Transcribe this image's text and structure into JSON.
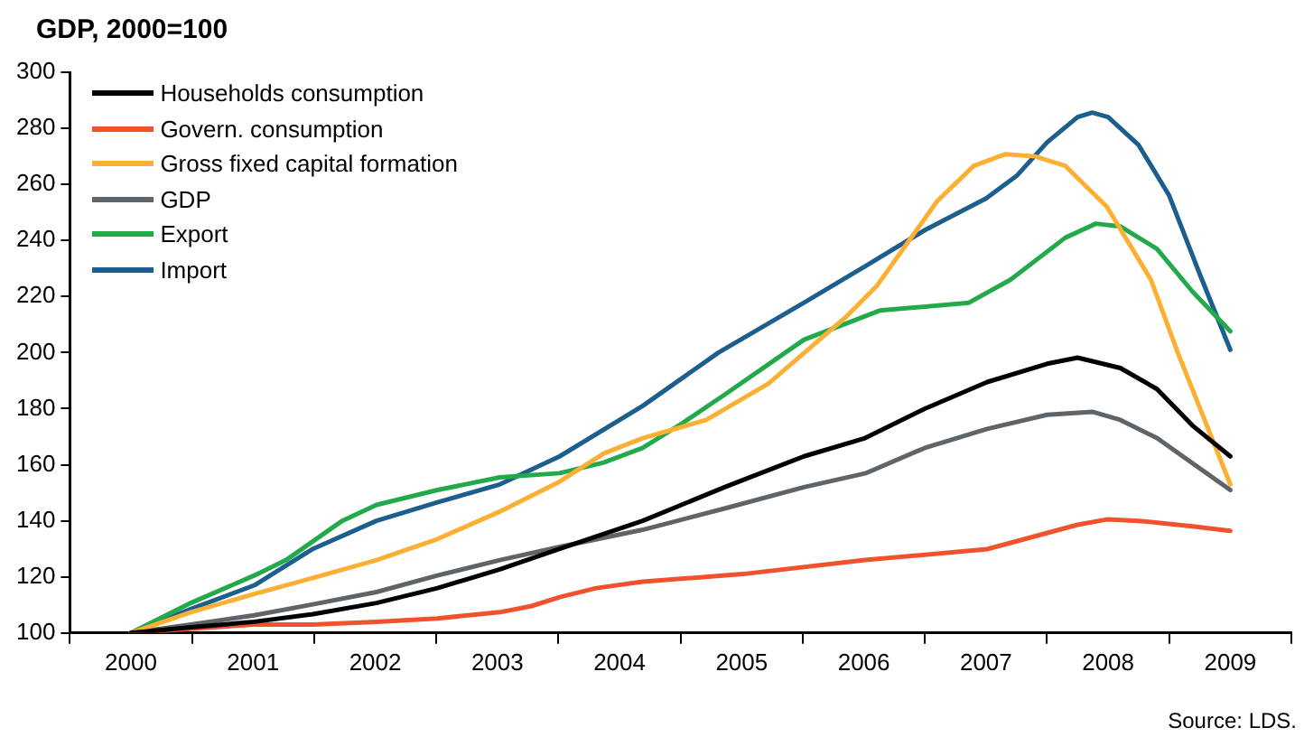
{
  "chart_data": {
    "type": "line",
    "title": "GDP, 2000=100",
    "annotations": [
      "Source: LDS."
    ],
    "xlim": [
      1999.5,
      2009.5
    ],
    "xticks": [
      {
        "value": 1999.5,
        "label": null
      },
      {
        "value": 2000,
        "label": "2000"
      },
      {
        "value": 2000.5,
        "label": null
      },
      {
        "value": 2001,
        "label": "2001"
      },
      {
        "value": 2001.5,
        "label": null
      },
      {
        "value": 2002,
        "label": "2002"
      },
      {
        "value": 2002.5,
        "label": null
      },
      {
        "value": 2003,
        "label": "2003"
      },
      {
        "value": 2003.5,
        "label": null
      },
      {
        "value": 2004,
        "label": "2004"
      },
      {
        "value": 2004.5,
        "label": null
      },
      {
        "value": 2005,
        "label": "2005"
      },
      {
        "value": 2005.5,
        "label": null
      },
      {
        "value": 2006,
        "label": "2006"
      },
      {
        "value": 2006.5,
        "label": null
      },
      {
        "value": 2007,
        "label": "2007"
      },
      {
        "value": 2007.5,
        "label": null
      },
      {
        "value": 2008,
        "label": "2008"
      },
      {
        "value": 2008.5,
        "label": null
      },
      {
        "value": 2009,
        "label": "2009"
      },
      {
        "value": 2009.5,
        "label": null
      }
    ],
    "ylim": [
      100,
      300
    ],
    "yticks": [
      100,
      120,
      140,
      160,
      180,
      200,
      220,
      240,
      260,
      280,
      300
    ],
    "grid": false,
    "legend": "top left",
    "marker": "none",
    "line_style": "solid",
    "series": [
      {
        "name": "Households consumption",
        "color": "#000000",
        "x": [
          2000,
          2000.49,
          2001.01,
          2001.49,
          2002.01,
          2002.51,
          2003.02,
          2003.51,
          2004.19,
          2004.86,
          2005.51,
          2006.01,
          2006.5,
          2007.01,
          2007.5,
          2007.75,
          2008.1,
          2008.4,
          2008.69,
          2009
        ],
        "values": [
          100,
          102,
          104,
          106.7,
          110.7,
          116,
          122.7,
          130,
          140,
          152,
          163,
          169.5,
          180,
          189.5,
          196,
          198.2,
          194.5,
          187,
          174,
          163
        ]
      },
      {
        "name": "Govern. consumption",
        "color": "#f0522e",
        "x": [
          2000,
          2000.49,
          2001.01,
          2001.49,
          2002.01,
          2002.51,
          2003.02,
          2003.28,
          2003.51,
          2003.81,
          2004.19,
          2005.01,
          2006.01,
          2007.01,
          2007.75,
          2007.99,
          2008.25,
          2008.69,
          2009
        ],
        "values": [
          100,
          101.5,
          103,
          103,
          104,
          105.2,
          107.4,
          109.6,
          112.8,
          116,
          118.3,
          121,
          126,
          129.9,
          138.6,
          140.5,
          140,
          138,
          136.4
        ]
      },
      {
        "name": "Gross fixed capital formation",
        "color": "#fbb034",
        "x": [
          2000,
          2000.49,
          2001.01,
          2001.49,
          2002.01,
          2002.51,
          2003.02,
          2003.51,
          2003.87,
          2004.19,
          2004.71,
          2005.22,
          2005.86,
          2006.11,
          2006.6,
          2006.9,
          2007.16,
          2007.4,
          2007.65,
          2007.99,
          2008.35,
          2008.57,
          2009
        ],
        "values": [
          100,
          107.4,
          113.9,
          119.6,
          126,
          133.5,
          143.3,
          154,
          164,
          169.5,
          176,
          189,
          213,
          224,
          254,
          266.6,
          270.8,
          270,
          266.6,
          252,
          226,
          200,
          153
        ]
      },
      {
        "name": "GDP",
        "color": "#5f6468",
        "x": [
          2000,
          2000.49,
          2001.01,
          2001.49,
          2002.01,
          2002.51,
          2003.02,
          2003.51,
          2004.19,
          2004.86,
          2005.51,
          2006.01,
          2006.5,
          2007.01,
          2007.5,
          2007.87,
          2008.1,
          2008.4,
          2009
        ],
        "values": [
          100,
          103,
          106.3,
          110.2,
          114.6,
          120.5,
          126,
          130.7,
          136.8,
          144.4,
          152,
          156.9,
          166,
          172.8,
          177.8,
          178.9,
          176,
          169.5,
          151
        ]
      },
      {
        "name": "Export",
        "color": "#22a94a",
        "x": [
          2000,
          2000.49,
          2001.01,
          2001.27,
          2001.73,
          2002.01,
          2002.51,
          2003.02,
          2003.51,
          2003.87,
          2004.19,
          2004.52,
          2004.86,
          2005.51,
          2006.13,
          2006.86,
          2007.2,
          2007.65,
          2007.9,
          2008.1,
          2008.4,
          2008.69,
          2009
        ],
        "values": [
          100,
          110.7,
          120.5,
          126,
          140,
          145.7,
          151,
          155.5,
          157,
          160.8,
          166,
          175,
          185,
          204.6,
          215,
          217.8,
          226,
          241,
          246,
          245,
          237,
          221.8,
          207.6
        ]
      },
      {
        "name": "Import",
        "color": "#1c5f8e",
        "x": [
          2000,
          2000.49,
          2001.01,
          2001.49,
          2002.01,
          2002.51,
          2003.02,
          2003.51,
          2004.19,
          2004.81,
          2005.51,
          2006.01,
          2006.5,
          2007.0,
          2007.25,
          2007.5,
          2007.75,
          2007.87,
          2008.0,
          2008.25,
          2008.5,
          2008.75,
          2009
        ],
        "values": [
          100,
          108.5,
          117,
          130,
          140,
          146.6,
          153,
          163,
          181,
          200,
          217.8,
          230.8,
          243.7,
          255,
          263,
          275,
          284,
          285.6,
          284,
          274,
          256,
          228,
          201
        ]
      }
    ]
  }
}
